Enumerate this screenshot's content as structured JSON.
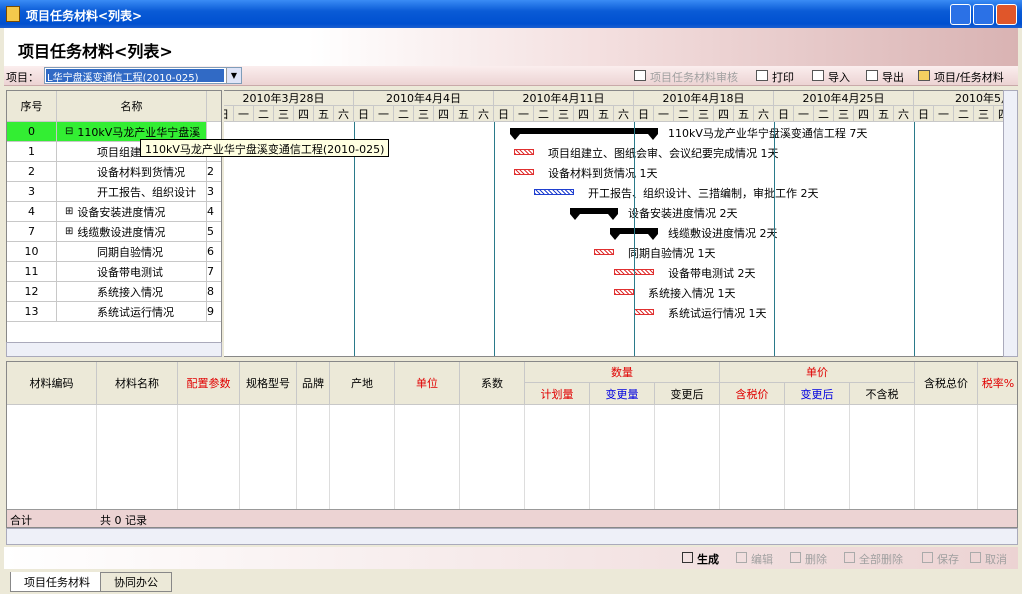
{
  "window": {
    "title": "项目任务材料<列表>"
  },
  "header": {
    "title": "项目任务材料<列表>"
  },
  "toolbar": {
    "project_label": "项目：",
    "project": "L华宁盘溪变通信工程(2010-025)",
    "buttons": [
      "项目任务材料审核",
      "打印",
      "导入",
      "导出",
      "项目/任务材料"
    ]
  },
  "gantt": {
    "columns": [
      "序号",
      "名称"
    ],
    "weeks": [
      "2010年3月28日",
      "2010年4月4日",
      "2010年4月11日",
      "2010年4月18日",
      "2010年4月25日",
      "2010年5月"
    ],
    "days": [
      "日",
      "一",
      "二",
      "三",
      "四",
      "五",
      "六"
    ],
    "rows": [
      {
        "seq": 0,
        "name": "110kV马龙产业华宁盘溪",
        "order": null,
        "bar_label": "110kV马龙产业华宁盘溪变通信工程 7天"
      },
      {
        "seq": 1,
        "name": "项目组建",
        "order": null,
        "bar_label": "项目组建立、图纸会审、会议纪要完成情况 1天"
      },
      {
        "seq": 2,
        "name": "设备材料到货情况",
        "order": 2,
        "bar_label": "设备材料到货情况 1天"
      },
      {
        "seq": 3,
        "name": "开工报告、组织设计",
        "order": 3,
        "bar_label": "开工报告、组织设计、三措编制，审批工作 2天"
      },
      {
        "seq": 4,
        "name": "设备安装进度情况",
        "order": 4,
        "bar_label": "设备安装进度情况 2天"
      },
      {
        "seq": 7,
        "name": "线缆敷设进度情况",
        "order": 5,
        "bar_label": "线缆敷设进度情况 2天"
      },
      {
        "seq": 10,
        "name": "同期自验情况",
        "order": 6,
        "bar_label": "同期自验情况 1天"
      },
      {
        "seq": 11,
        "name": "设备带电测试",
        "order": 7,
        "bar_label": "设备带电测试 2天"
      },
      {
        "seq": 12,
        "name": "系统接入情况",
        "order": 8,
        "bar_label": "系统接入情况 1天"
      },
      {
        "seq": 13,
        "name": "系统试运行情况",
        "order": 9,
        "bar_label": "系统试运行情况 1天"
      }
    ],
    "tooltip": "110kV马龙产业华宁盘溪变通信工程(2010-025)"
  },
  "materials": {
    "group_headers": [
      "数量",
      "单价"
    ],
    "columns": [
      "材料编码",
      "材料名称",
      "配置参数",
      "规格型号",
      "品牌",
      "产地",
      "单位",
      "系数",
      "计划量",
      "变更量",
      "变更后",
      "含税价",
      "变更后",
      "不含税",
      "含税总价",
      "税率%"
    ],
    "footer": [
      "合计",
      "共 0 记录"
    ]
  },
  "actions": [
    "生成",
    "编辑",
    "删除",
    "全部删除",
    "保存",
    "取消"
  ],
  "tabs": [
    "项目任务材料",
    "协同办公"
  ]
}
